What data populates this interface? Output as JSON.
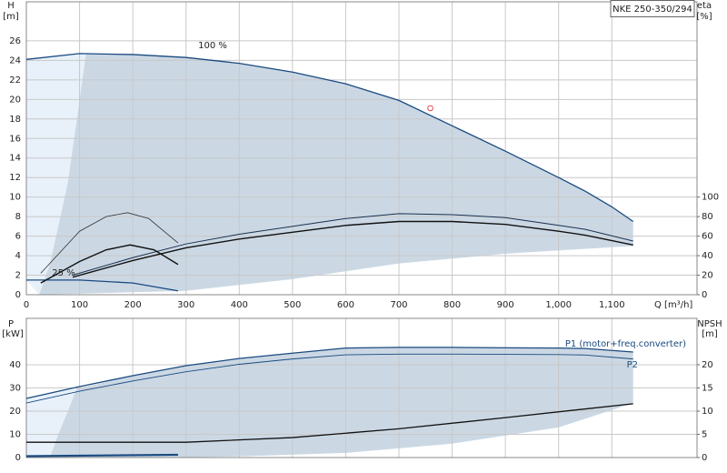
{
  "chart_data": [
    {
      "type": "line",
      "title": "NKE 250-350/294",
      "ylabel": "H",
      "yunit": "[m]",
      "y2label": "eta",
      "y2unit": "[%]",
      "xlabel": "Q [m³/h]",
      "xlim": [
        0,
        1260
      ],
      "ylim": [
        0,
        30
      ],
      "y2lim": [
        0,
        300
      ],
      "grid": true,
      "xticks": [
        0,
        100,
        200,
        300,
        400,
        500,
        600,
        700,
        800,
        900,
        {
          "value": 1000,
          "label": "1,000"
        },
        {
          "value": 1100,
          "label": "1,100"
        }
      ],
      "yticks": [
        0,
        2,
        4,
        6,
        8,
        10,
        12,
        14,
        16,
        18,
        20,
        22,
        24,
        26
      ],
      "y2ticks": [
        0,
        20,
        40,
        60,
        80,
        100
      ],
      "areas": [
        {
          "color": "#e8f1fa",
          "x": [
            0,
            112,
            95,
            78,
            60,
            44,
            24,
            0
          ],
          "values": [
            24.1,
            24.7,
            18,
            11.5,
            7,
            3.1,
            0,
            1.5
          ]
        },
        {
          "color": "#cbd8e4",
          "x": [
            112,
            200,
            300,
            400,
            500,
            600,
            700,
            800,
            900,
            1000,
            1050,
            1100,
            1140,
            1140,
            900,
            700,
            500,
            300,
            24,
            44,
            60,
            78,
            95
          ],
          "values": [
            24.7,
            24.6,
            24.3,
            23.7,
            22.8,
            21.6,
            19.9,
            17.3,
            14.7,
            12.0,
            10.6,
            9.0,
            7.5,
            5.0,
            4.2,
            3.2,
            1.6,
            0.4,
            0,
            3.1,
            7,
            11.5,
            18
          ]
        }
      ],
      "series": [
        {
          "name": "100 %",
          "color": "#1a4a80",
          "width": 1.3,
          "x": [
            0,
            100,
            200,
            300,
            400,
            500,
            600,
            700,
            800,
            900,
            1000,
            1050,
            1100,
            1140
          ],
          "values": [
            24.1,
            24.7,
            24.6,
            24.3,
            23.7,
            22.8,
            21.6,
            19.9,
            17.3,
            14.7,
            12.0,
            10.6,
            9.0,
            7.5
          ]
        },
        {
          "name": "25 %",
          "color": "#1a4a80",
          "width": 1.3,
          "x": [
            0,
            100,
            200,
            285
          ],
          "values": [
            1.5,
            1.5,
            1.2,
            0.4
          ]
        },
        {
          "color": "#1a3050",
          "width": 1,
          "axis": "y2",
          "x": [
            87,
            200,
            300,
            400,
            500,
            600,
            700,
            800,
            900,
            1000,
            1050,
            1140
          ],
          "values": [
            20,
            38,
            52,
            62,
            70,
            78,
            83,
            82,
            79,
            71,
            67,
            55
          ]
        },
        {
          "color": "#111111",
          "width": 1.4,
          "axis": "y2",
          "x": [
            87,
            200,
            300,
            400,
            500,
            600,
            700,
            800,
            900,
            1000,
            1050,
            1140
          ],
          "values": [
            18,
            35,
            48,
            57,
            64,
            71,
            75,
            75,
            72,
            65,
            61,
            51
          ]
        },
        {
          "color": "#333333",
          "width": 0.8,
          "axis": "y2",
          "x": [
            27,
            100,
            150,
            190,
            230,
            285
          ],
          "values": [
            22,
            65,
            80,
            84,
            78,
            53
          ]
        },
        {
          "color": "#111111",
          "width": 1.4,
          "axis": "y2",
          "x": [
            27,
            100,
            150,
            195,
            240,
            285
          ],
          "values": [
            12,
            34,
            46,
            51,
            46,
            31
          ]
        }
      ],
      "operating_point": {
        "color": "#e05050",
        "x": 759,
        "value": 19.1
      }
    },
    {
      "type": "line",
      "ylabel": "P",
      "yunit": "[kW]",
      "y2label": "NPSH",
      "y2unit": "[m]",
      "xlim": [
        0,
        1260
      ],
      "ylim": [
        0,
        60
      ],
      "y2lim": [
        0,
        30
      ],
      "grid": true,
      "xticks": [
        0,
        100,
        200,
        300,
        400,
        500,
        600,
        700,
        800,
        900,
        1000,
        1100
      ],
      "yticks": [
        0,
        10,
        20,
        30,
        40
      ],
      "y2ticks": [
        0,
        5,
        10,
        15,
        20
      ],
      "areas": [
        {
          "color": "#e8f1fa",
          "x": [
            0,
            120,
            95,
            78,
            60,
            44,
            0
          ],
          "values": [
            25.5,
            31,
            30,
            20,
            10,
            0,
            0
          ]
        },
        {
          "color": "#cbd8e4",
          "x": [
            120,
            200,
            300,
            400,
            500,
            600,
            700,
            800,
            900,
            1000,
            1050,
            1140,
            1140,
            1000,
            800,
            600,
            400,
            285,
            44,
            60,
            78,
            95
          ],
          "values": [
            31,
            35.3,
            39.6,
            42.7,
            45,
            47.2,
            47.5,
            47.5,
            47.3,
            47.2,
            47,
            45.5,
            23.5,
            13,
            6,
            2,
            0.5,
            0,
            0,
            10,
            20,
            30
          ]
        }
      ],
      "series": [
        {
          "name": "P1 (motor+freq.converter)",
          "color": "#1a4a80",
          "width": 1.3,
          "x": [
            0,
            100,
            200,
            300,
            400,
            500,
            600,
            700,
            800,
            900,
            1000,
            1050,
            1140
          ],
          "values": [
            25.5,
            30.6,
            35.3,
            39.6,
            42.7,
            45,
            47.2,
            47.5,
            47.5,
            47.3,
            47.2,
            47,
            45.5
          ]
        },
        {
          "name": "P2",
          "color": "#1a4a80",
          "width": 0.9,
          "x": [
            0,
            100,
            200,
            300,
            400,
            500,
            600,
            700,
            800,
            900,
            1000,
            1050,
            1140
          ],
          "values": [
            23.5,
            28.6,
            33,
            37,
            40.2,
            42.5,
            44.3,
            44.6,
            44.6,
            44.5,
            44.4,
            44.2,
            42.5
          ]
        },
        {
          "color": "#111111",
          "width": 1.3,
          "axis": "y2",
          "x": [
            0,
            300,
            500,
            700,
            900,
            1140
          ],
          "values": [
            3.3,
            3.3,
            4.3,
            6.2,
            8.6,
            11.6
          ]
        },
        {
          "color": "#1a4a80",
          "width": 2.2,
          "x": [
            0,
            285
          ],
          "values": [
            0.6,
            1.2
          ]
        }
      ]
    }
  ]
}
